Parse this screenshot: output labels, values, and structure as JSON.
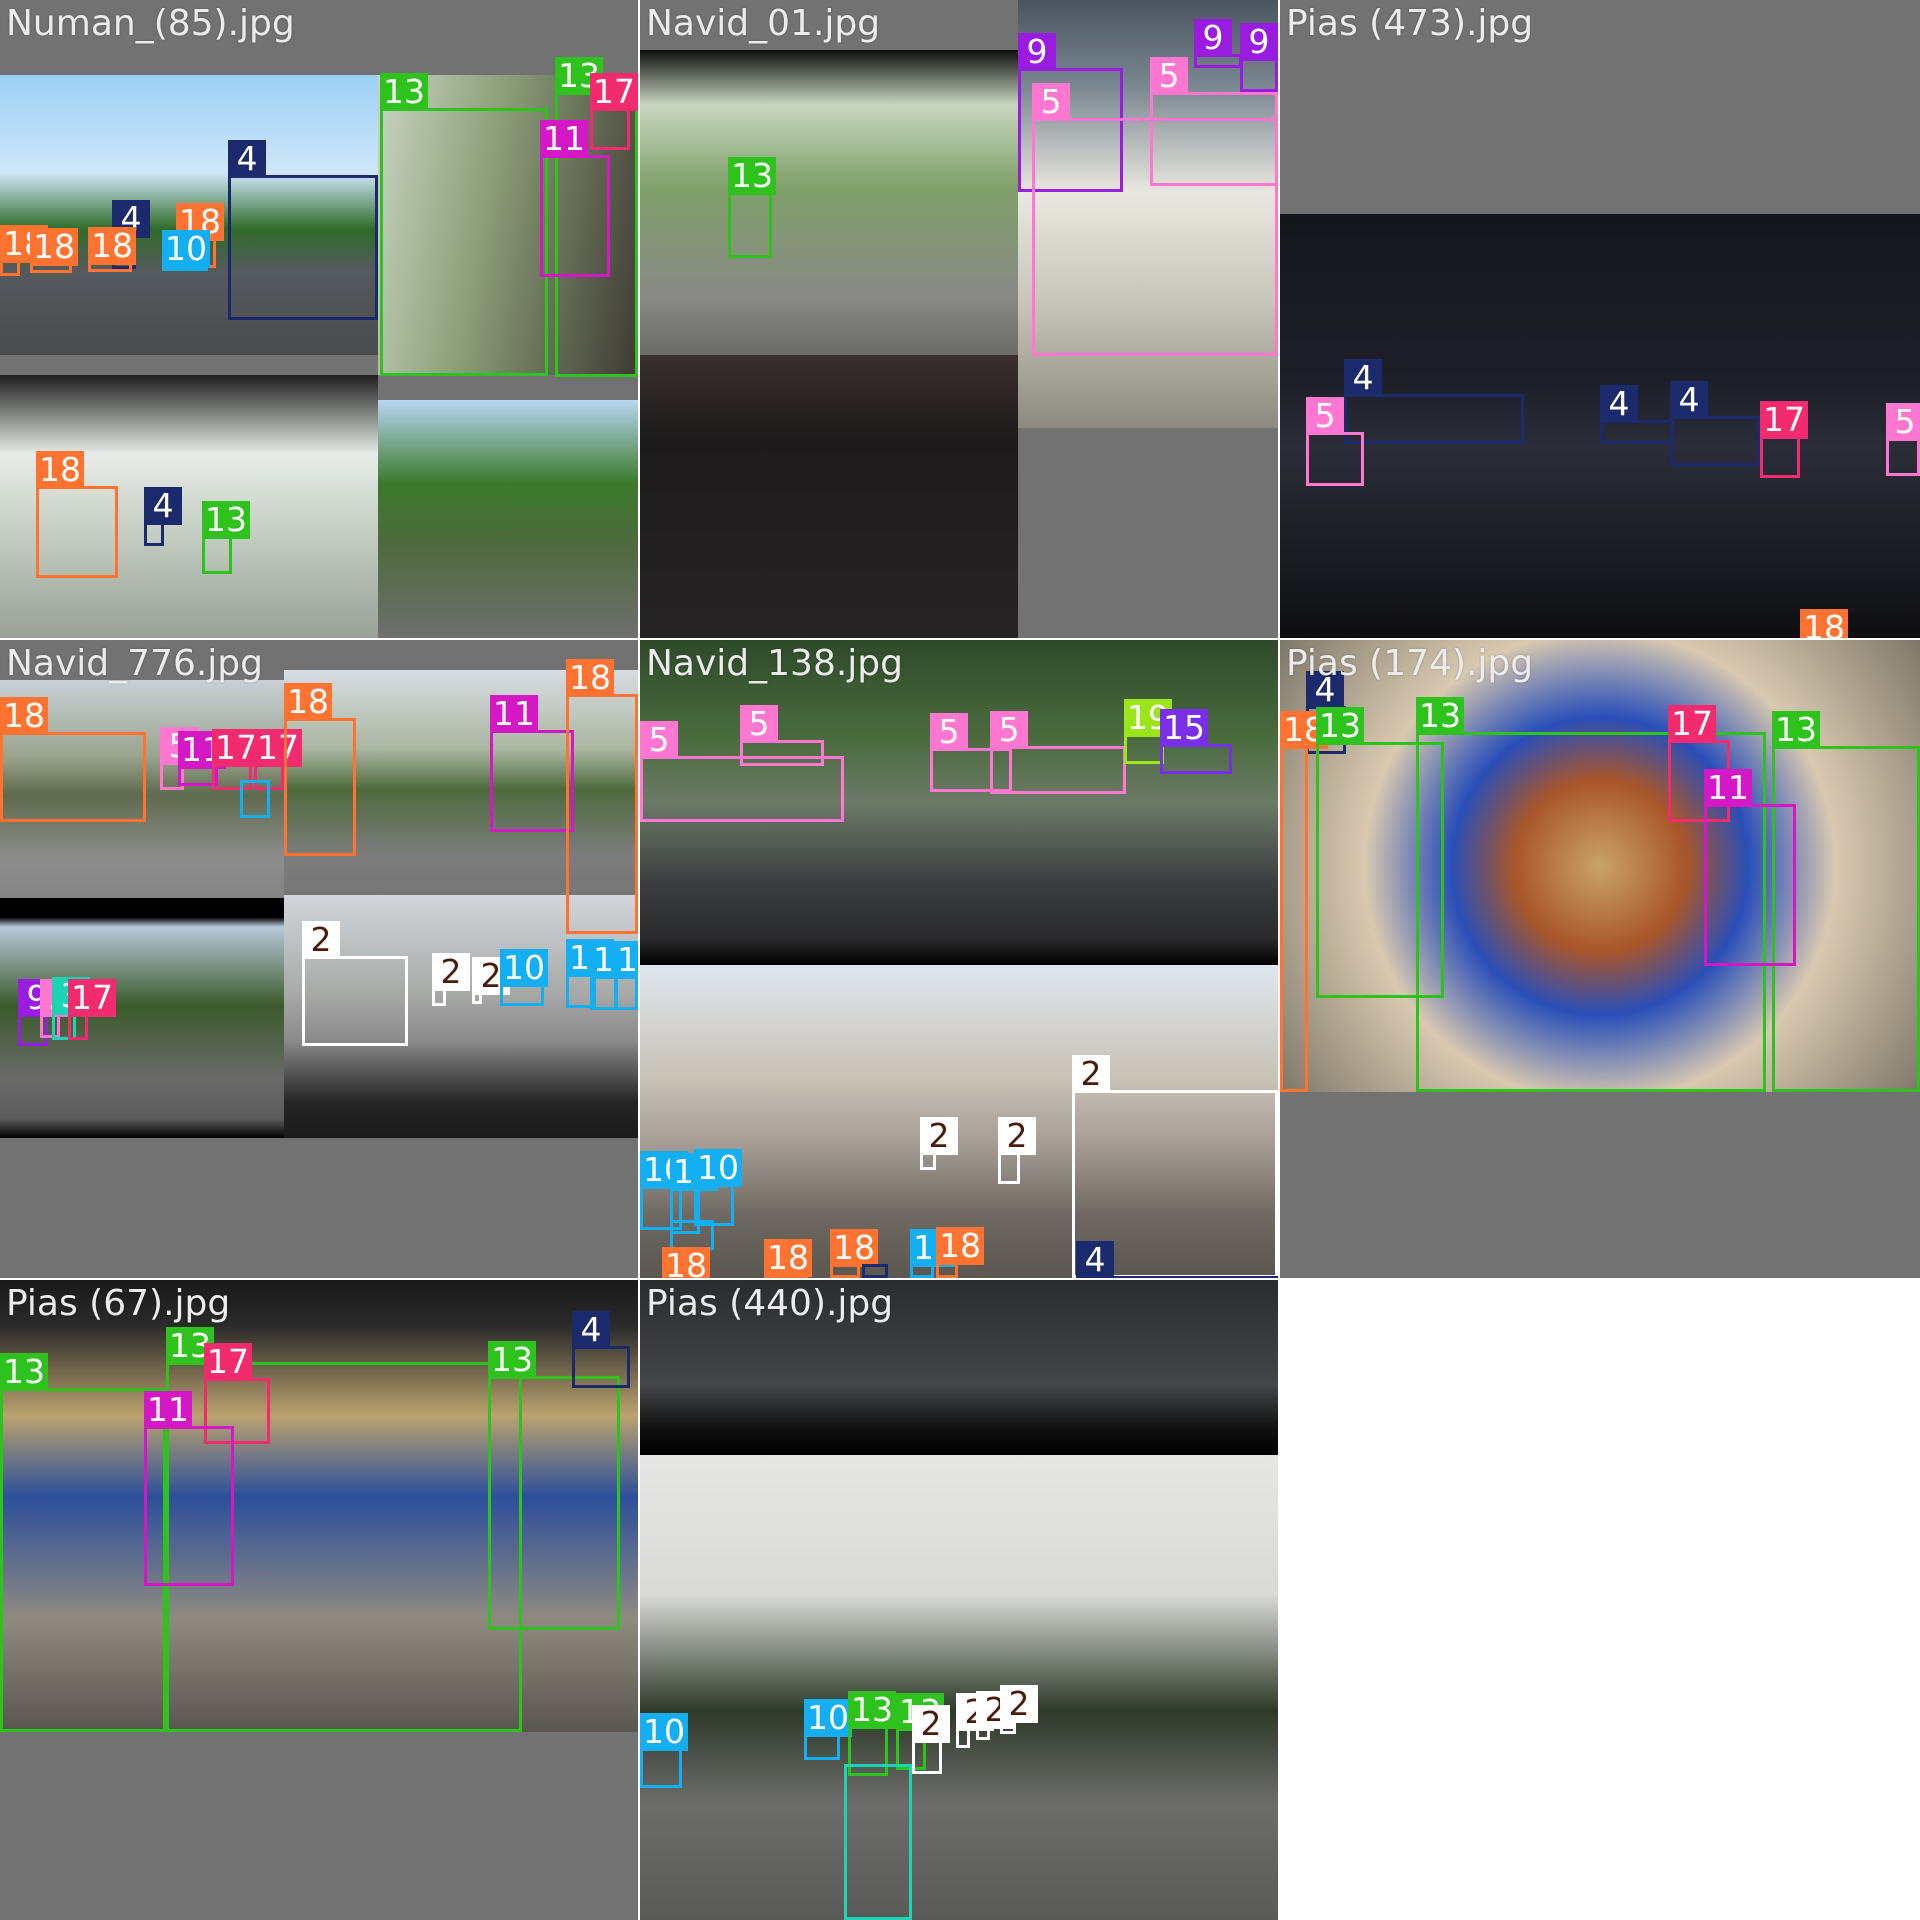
{
  "class_colors": {
    "2": "#ffffff",
    "4": "#1a2a6c",
    "5": "#ff77d0",
    "9": "#9a1ce0",
    "10": "#14aef2",
    "11": "#d418c6",
    "13": "#2ec21c",
    "15": "#7a2ee8",
    "17": "#f22a6e",
    "18": "#ff7230",
    "19": "#9ae61a",
    "3": "#1ad4b4"
  },
  "tiles": [
    {
      "title": "Numan_(85).jpg",
      "subimages": [
        {
          "scene": "daytime highway with bus",
          "colors": [
            "#9cd0f6",
            "#2f6b2a",
            "#555a5e"
          ]
        },
        {
          "scene": "man on bicycle rickshaw",
          "colors": [
            "#c9d4c2",
            "#6b7f4e",
            "#3d3a34"
          ]
        },
        {
          "scene": "foggy road through windshield",
          "colors": [
            "#e8ece8",
            "#9bb094",
            "#2b2b2b"
          ]
        },
        {
          "scene": "roadside trees and fence",
          "colors": [
            "#b8d6f0",
            "#3c7a2c",
            "#6f6f6f"
          ]
        }
      ],
      "detections": [
        {
          "cls": "4"
        },
        {
          "cls": "4"
        },
        {
          "cls": "18"
        },
        {
          "cls": "18"
        },
        {
          "cls": "18"
        },
        {
          "cls": "18"
        },
        {
          "cls": "10"
        },
        {
          "cls": "13"
        },
        {
          "cls": "13"
        },
        {
          "cls": "17"
        },
        {
          "cls": "11"
        },
        {
          "cls": "4"
        },
        {
          "cls": "18"
        },
        {
          "cls": "4"
        },
        {
          "cls": "13"
        }
      ]
    },
    {
      "title": "Navid_01.jpg",
      "subimages": [
        {
          "scene": "rural road through windshield",
          "colors": [
            "#c7d6c0",
            "#4f7a3a",
            "#8a8a86"
          ]
        },
        {
          "scene": "city cars parked",
          "colors": [
            "#4a5560",
            "#e9e7df",
            "#8c8a80"
          ]
        },
        {
          "scene": "car dashboard interior",
          "colors": [
            "#1c1a1a",
            "#3a2f2f",
            "#555"
          ]
        }
      ],
      "detections": [
        {
          "cls": "13"
        },
        {
          "cls": "9"
        },
        {
          "cls": "9"
        },
        {
          "cls": "9"
        },
        {
          "cls": "5"
        },
        {
          "cls": "5"
        },
        {
          "cls": "5"
        }
      ]
    },
    {
      "title": "Pias (473).jpg",
      "subimages": [
        {
          "scene": "night city street",
          "colors": [
            "#15161c",
            "#2a2d38",
            "#121212"
          ]
        }
      ],
      "detections": [
        {
          "cls": "4"
        },
        {
          "cls": "5"
        },
        {
          "cls": "4"
        },
        {
          "cls": "4"
        },
        {
          "cls": "17"
        },
        {
          "cls": "5"
        },
        {
          "cls": "18"
        }
      ]
    },
    {
      "title": "Navid_776.jpg",
      "subimages": [
        {
          "scene": "road with tanker truck",
          "colors": [
            "#c9d0d6",
            "#5f6b4e",
            "#8d8d8d"
          ]
        },
        {
          "scene": "road with trucks",
          "colors": [
            "#d8dde2",
            "#4f6b3e",
            "#7d7d7d"
          ]
        },
        {
          "scene": "wide road with trees",
          "colors": [
            "#b8c8d8",
            "#3c5a2c",
            "#6a6a6a"
          ]
        },
        {
          "scene": "motorcycle handlebar view",
          "colors": [
            "#d2d6da",
            "#8a8a8a",
            "#262626"
          ]
        }
      ],
      "detections": [
        {
          "cls": "18"
        },
        {
          "cls": "5"
        },
        {
          "cls": "11"
        },
        {
          "cls": "17"
        },
        {
          "cls": "17"
        },
        {
          "cls": "10"
        },
        {
          "cls": "18"
        },
        {
          "cls": "11"
        },
        {
          "cls": "18"
        },
        {
          "cls": "9"
        },
        {
          "cls": "5"
        },
        {
          "cls": "3"
        },
        {
          "cls": "17"
        },
        {
          "cls": "2"
        },
        {
          "cls": "2"
        },
        {
          "cls": "2"
        },
        {
          "cls": "10"
        },
        {
          "cls": "10"
        },
        {
          "cls": "10"
        },
        {
          "cls": "10"
        }
      ]
    },
    {
      "title": "Navid_138.jpg",
      "subimages": [
        {
          "scene": "divided road with trees",
          "colors": [
            "#2f4a2a",
            "#5a6e54",
            "#3b3d40"
          ]
        },
        {
          "scene": "town street from motorcycle",
          "colors": [
            "#dfe6ee",
            "#a9a198",
            "#6e6962"
          ]
        }
      ],
      "detections": [
        {
          "cls": "5"
        },
        {
          "cls": "5"
        },
        {
          "cls": "5"
        },
        {
          "cls": "5"
        },
        {
          "cls": "19"
        },
        {
          "cls": "15"
        },
        {
          "cls": "2"
        },
        {
          "cls": "10"
        },
        {
          "cls": "10"
        },
        {
          "cls": "10"
        },
        {
          "cls": "10"
        },
        {
          "cls": "2"
        },
        {
          "cls": "2"
        },
        {
          "cls": "18"
        },
        {
          "cls": "18"
        },
        {
          "cls": "18"
        },
        {
          "cls": "4"
        },
        {
          "cls": "10"
        },
        {
          "cls": "18"
        },
        {
          "cls": "4"
        }
      ]
    },
    {
      "title": "Pias (174).jpg",
      "subimages": [
        {
          "scene": "painted rickshaw close-up",
          "colors": [
            "#c9a36a",
            "#2a4fb8",
            "#d8c9b0"
          ]
        }
      ],
      "detections": [
        {
          "cls": "4"
        },
        {
          "cls": "18"
        },
        {
          "cls": "13"
        },
        {
          "cls": "13"
        },
        {
          "cls": "17"
        },
        {
          "cls": "13"
        },
        {
          "cls": "11"
        }
      ]
    },
    {
      "title": "Pias (67).jpg",
      "subimages": [
        {
          "scene": "rickshaws in traffic",
          "colors": [
            "#b9a26e",
            "#2d4f9a",
            "#8f8a80"
          ]
        }
      ],
      "detections": [
        {
          "cls": "13"
        },
        {
          "cls": "13"
        },
        {
          "cls": "17"
        },
        {
          "cls": "11"
        },
        {
          "cls": "13"
        },
        {
          "cls": "4"
        }
      ]
    },
    {
      "title": "Pias (440).jpg",
      "subimages": [
        {
          "scene": "dark road",
          "colors": [
            "#2a2c30",
            "#44464a",
            "#111"
          ]
        },
        {
          "scene": "overcast street with pedestrians",
          "colors": [
            "#e6e6e4",
            "#2e3a2a",
            "#6c6c6a"
          ]
        }
      ],
      "detections": [
        {
          "cls": "10"
        },
        {
          "cls": "10"
        },
        {
          "cls": "13"
        },
        {
          "cls": "13"
        },
        {
          "cls": "2"
        },
        {
          "cls": "2"
        },
        {
          "cls": "2"
        },
        {
          "cls": "2"
        }
      ]
    }
  ]
}
